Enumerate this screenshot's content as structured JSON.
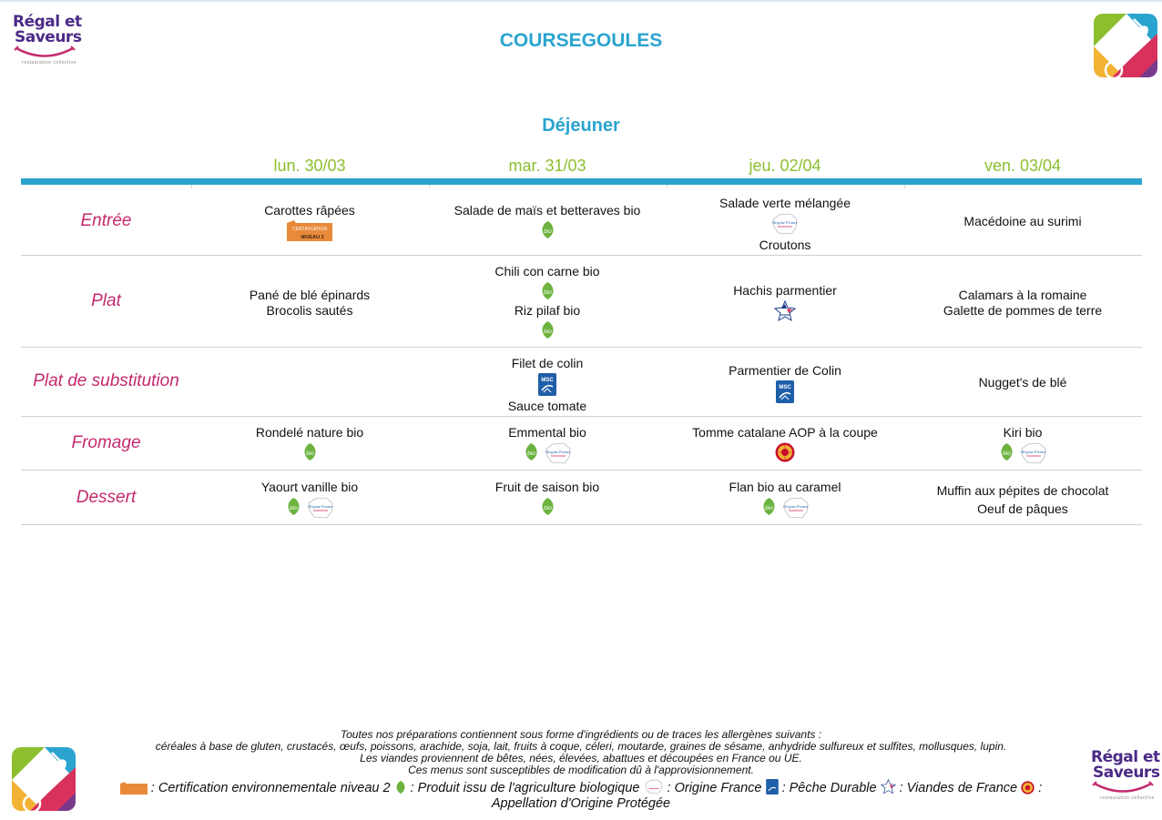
{
  "header": {
    "brand_line1": "Régal et",
    "brand_line2": "Saveurs",
    "brand_tagline": "restauration collective",
    "city": "COURSEGOULES",
    "meal": "Déjeuner"
  },
  "days": [
    "lun. 30/03",
    "mar. 31/03",
    "jeu. 02/04",
    "ven. 03/04"
  ],
  "categories": [
    "Entrée",
    "Plat",
    "Plat de substitution",
    "Fromage",
    "Dessert"
  ],
  "cells": {
    "entree": [
      {
        "lines": [
          "Carottes râpées"
        ],
        "icons": [
          "certification-env-icon"
        ]
      },
      {
        "lines": [
          "Salade de maïs et betteraves bio"
        ],
        "icons": [
          "bio-icon"
        ]
      },
      {
        "lines": [
          "Salade verte mélangée",
          "Croutons"
        ],
        "icons": [
          "origine-france-icon"
        ]
      },
      {
        "lines": [
          "Macédoine au surimi"
        ],
        "icons": []
      }
    ],
    "plat": [
      {
        "lines": [
          "Pané de blé épinards",
          "Brocolis sautés"
        ],
        "icons": []
      },
      {
        "lines": [
          "Chili con carne bio",
          "Riz pilaf bio"
        ],
        "icons": [
          "bio-icon",
          "bio-icon"
        ]
      },
      {
        "lines": [
          "Hachis parmentier"
        ],
        "icons": [
          "viandes-france-icon"
        ]
      },
      {
        "lines": [
          "Calamars à la romaine",
          "Galette de pommes de terre"
        ],
        "icons": []
      }
    ],
    "substitution": [
      {
        "lines": [],
        "icons": []
      },
      {
        "lines": [
          "Filet de colin",
          "Sauce tomate"
        ],
        "icons": [
          "msc-icon"
        ]
      },
      {
        "lines": [
          "Parmentier de Colin"
        ],
        "icons": [
          "msc-icon"
        ]
      },
      {
        "lines": [
          "Nugget's de blé"
        ],
        "icons": []
      }
    ],
    "fromage": [
      {
        "lines": [
          "Rondelé nature bio"
        ],
        "icons": [
          "bio-icon"
        ]
      },
      {
        "lines": [
          "Emmental bio"
        ],
        "icons": [
          "bio-icon",
          "origine-france-icon"
        ]
      },
      {
        "lines": [
          "Tomme catalane AOP à la coupe"
        ],
        "icons": [
          "aop-icon"
        ]
      },
      {
        "lines": [
          "Kiri bio"
        ],
        "icons": [
          "bio-icon",
          "origine-france-icon"
        ]
      }
    ],
    "dessert": [
      {
        "lines": [
          "Yaourt vanille bio"
        ],
        "icons": [
          "bio-icon",
          "origine-france-icon"
        ]
      },
      {
        "lines": [
          "Fruit de saison bio"
        ],
        "icons": [
          "bio-icon"
        ]
      },
      {
        "lines": [
          "Flan bio au caramel"
        ],
        "icons": [
          "bio-icon",
          "origine-france-icon"
        ]
      },
      {
        "lines": [
          "Muffin aux pépites de chocolat",
          "Oeuf de pâques"
        ],
        "icons": []
      }
    ]
  },
  "footer": {
    "allergens_intro": "Toutes nos préparations contiennent sous forme d'ingrédients ou de traces les allergènes suivants :",
    "allergens_list": "céréales à base de gluten, crustacés, œufs, poissons, arachide, soja, lait, fruits à coque, céleri, moutarde, graines de sésame, anhydride sulfureux et sulfites, mollusques, lupin.",
    "meat_origin": "Les viandes proviennent de bêtes, nées, élevées, abattues et découpées en France ou UE.",
    "disclaimer": "Ces menus sont susceptibles de modification dû à l'approvisionnement.",
    "legend_cert": ": Certification environnementale niveau 2",
    "legend_bio": ": Produit issu de l'agriculture biologique",
    "legend_fr": ": Origine France",
    "legend_msc": ": Pêche Durable",
    "legend_vf": ": Viandes de France",
    "legend_aop": ": Appellation d'Origine Protégée"
  },
  "icon_labels": {
    "bio": "bio",
    "msc": "MSC",
    "cert": "CERTIFICATION",
    "cert_level": "NIVEAU 2",
    "fr": "Origine France"
  },
  "colors": {
    "accent_blue": "#2aa4cf",
    "day_green": "#8dbf2f",
    "category_pink": "#c42a6e",
    "bio_green": "#6cb33f",
    "msc_blue": "#1f5ea8",
    "cert_orange": "#e98a3a"
  }
}
